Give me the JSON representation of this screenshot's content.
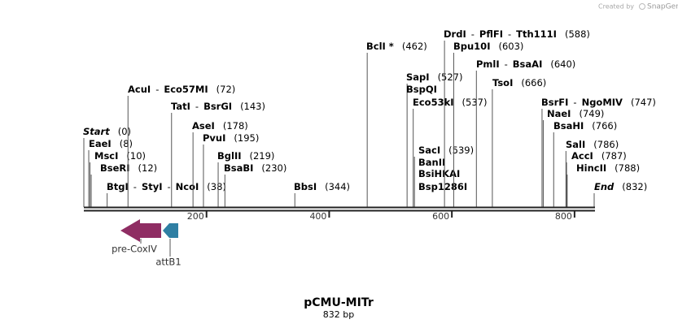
{
  "watermark": {
    "prefix": "Created by",
    "brand": "SnapGene"
  },
  "separator": "-",
  "sites": [
    {
      "names": [
        "Start"
      ],
      "site": {
        "value": 0,
        "label": "(0)"
      }
    },
    {
      "names": [
        "EaeI"
      ],
      "site": {
        "value": 8,
        "label": "(8)"
      }
    },
    {
      "names": [
        "MscI"
      ],
      "site": {
        "value": 10,
        "label": "(10)"
      }
    },
    {
      "names": [
        "BseRI"
      ],
      "site": {
        "value": 12,
        "label": "(12)"
      }
    },
    {
      "names": [
        "BtgI",
        "StyI",
        "NcoI"
      ],
      "site": {
        "value": 38,
        "label": "(38)"
      }
    },
    {
      "names": [
        "AcuI",
        "Eco57MI"
      ],
      "site": {
        "value": 72,
        "label": "(72)"
      }
    },
    {
      "names": [
        "TatI",
        "BsrGI"
      ],
      "site": {
        "value": 143,
        "label": "(143)"
      }
    },
    {
      "names": [
        "AseI"
      ],
      "site": {
        "value": 178,
        "label": "(178)"
      }
    },
    {
      "names": [
        "PvuI"
      ],
      "site": {
        "value": 195,
        "label": "(195)"
      }
    },
    {
      "names": [
        "BglII"
      ],
      "site": {
        "value": 219,
        "label": "(219)"
      }
    },
    {
      "names": [
        "BsaBI"
      ],
      "site": {
        "value": 230,
        "label": "(230)"
      }
    },
    {
      "names": [
        "BbsI"
      ],
      "site": {
        "value": 344,
        "label": "(344)"
      }
    },
    {
      "names": [
        "BclI *"
      ],
      "site": {
        "value": 462,
        "label": "(462)"
      }
    },
    {
      "names": [
        "SapI"
      ],
      "site": {
        "value": 527,
        "label": "(527)"
      }
    },
    {
      "names": [
        "BspQI"
      ]
    },
    {
      "names": [
        "Eco53kI"
      ],
      "site": {
        "value": 537,
        "label": "(537)"
      }
    },
    {
      "names": [
        "SacI"
      ],
      "site": {
        "value": 539,
        "label": "(539)"
      }
    },
    {
      "names": [
        "BanII"
      ]
    },
    {
      "names": [
        "BsiHKAI"
      ]
    },
    {
      "names": [
        "Bsp1286I"
      ]
    },
    {
      "names": [
        "DrdI",
        "PflFI",
        "Tth111I"
      ],
      "site": {
        "value": 588,
        "label": "(588)"
      }
    },
    {
      "names": [
        "Bpu10I"
      ],
      "site": {
        "value": 603,
        "label": "(603)"
      }
    },
    {
      "names": [
        "PmlI",
        "BsaAI"
      ],
      "site": {
        "value": 640,
        "label": "(640)"
      }
    },
    {
      "names": [
        "TsoI"
      ],
      "site": {
        "value": 666,
        "label": "(666)"
      }
    },
    {
      "names": [
        "BsrFI",
        "NgoMIV"
      ],
      "site": {
        "value": 747,
        "label": "(747)"
      }
    },
    {
      "names": [
        "NaeI"
      ],
      "site": {
        "value": 749,
        "label": "(749)"
      }
    },
    {
      "names": [
        "BsaHI"
      ],
      "site": {
        "value": 766,
        "label": "(766)"
      }
    },
    {
      "names": [
        "SalI"
      ],
      "site": {
        "value": 786,
        "label": "(786)"
      }
    },
    {
      "names": [
        "AccI"
      ],
      "site": {
        "value": 787,
        "label": "(787)"
      }
    },
    {
      "names": [
        "HincII"
      ],
      "site": {
        "value": 788,
        "label": "(788)"
      }
    },
    {
      "names": [
        "End"
      ],
      "site": {
        "value": 832,
        "label": "(832)"
      }
    }
  ],
  "ruler": {
    "length": 832,
    "ticks": [
      200,
      400,
      600,
      800
    ]
  },
  "features": [
    {
      "label": "pre-CoxIV"
    },
    {
      "label": "attB1"
    }
  ],
  "title": "pCMU-MITr",
  "subtitle": "832 bp"
}
